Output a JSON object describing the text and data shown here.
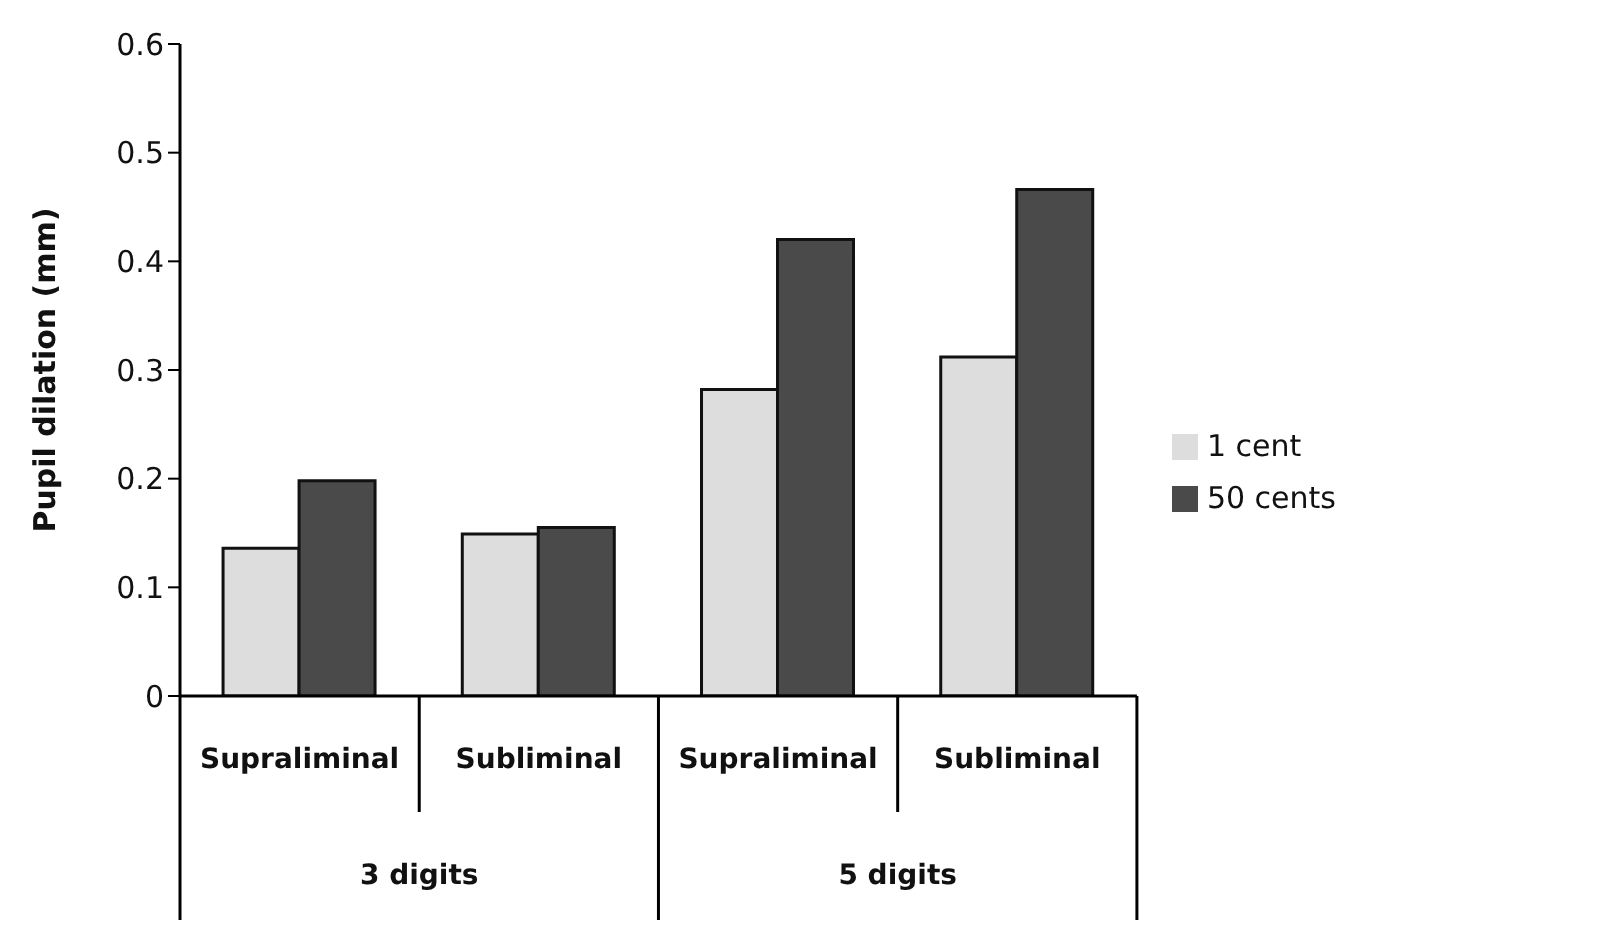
{
  "chart_data": {
    "type": "bar",
    "ylabel": "Pupil dilation (mm)",
    "categories": [
      "Supraliminal",
      "Subliminal",
      "Supraliminal",
      "Subliminal"
    ],
    "series": [
      {
        "name": "1 cent",
        "color": "#dddddd",
        "values": [
          0.136,
          0.149,
          0.282,
          0.312
        ]
      },
      {
        "name": "50 cents",
        "color": "#4a4a4a",
        "values": [
          0.198,
          0.155,
          0.42,
          0.466
        ]
      }
    ],
    "annotations": [
      "3 digits",
      "5 digits"
    ],
    "ylim": [
      0,
      0.6
    ],
    "yticks": [
      0,
      0.1,
      0.2,
      0.3,
      0.4,
      0.5,
      0.6
    ],
    "grid": false,
    "legend": "right"
  }
}
